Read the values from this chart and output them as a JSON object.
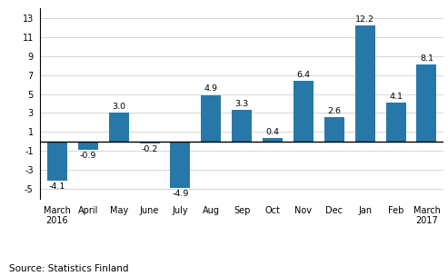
{
  "categories": [
    "March\n2016",
    "April",
    "May",
    "June",
    "July",
    "Aug",
    "Sep",
    "Oct",
    "Nov",
    "Dec",
    "Jan",
    "Feb",
    "March\n2017"
  ],
  "values": [
    -4.1,
    -0.9,
    3.0,
    -0.2,
    -4.9,
    4.9,
    3.3,
    0.4,
    6.4,
    2.6,
    12.2,
    4.1,
    8.1
  ],
  "bar_color": "#2778a8",
  "source": "Source: Statistics Finland",
  "ylim": [
    -6,
    14
  ],
  "yticks": [
    -5,
    -3,
    -1,
    1,
    3,
    5,
    7,
    9,
    11,
    13
  ],
  "bar_width": 0.65,
  "label_fontsize": 6.8,
  "source_fontsize": 7.5,
  "tick_fontsize": 7.0,
  "bg_color": "#ffffff",
  "grid_color": "#d0d0d0"
}
